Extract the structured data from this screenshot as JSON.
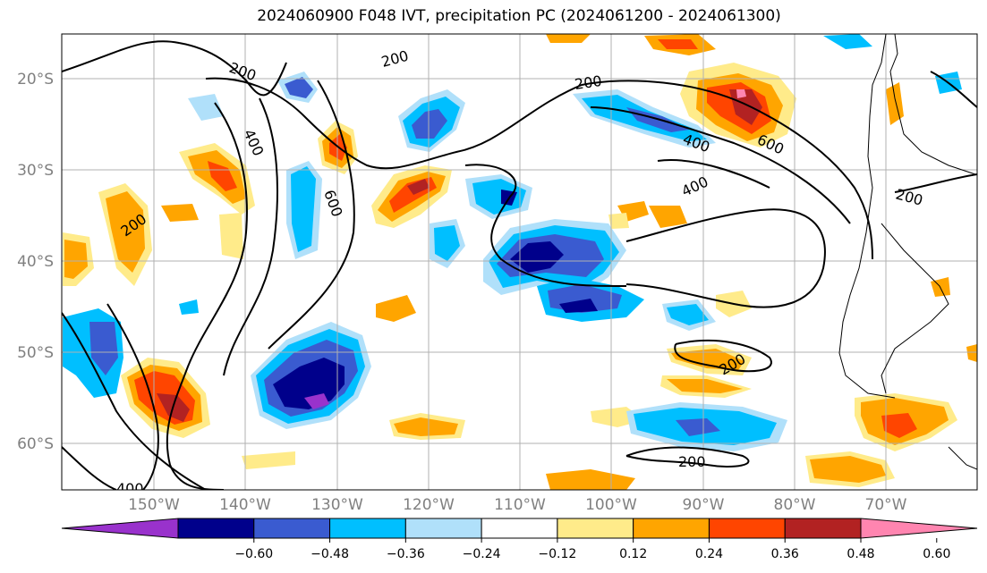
{
  "title": "2024060900 F048 IVT, precipitation PC (2024061200 - 2024061300)",
  "map": {
    "lat_labels": [
      "20°S",
      "30°S",
      "40°S",
      "50°S",
      "60°S"
    ],
    "lon_labels": [
      "150°W",
      "140°W",
      "130°W",
      "120°W",
      "110°W",
      "100°W",
      "90°W",
      "80°W",
      "70°W"
    ],
    "gridlines": true,
    "contour_labels": [
      "200",
      "200",
      "200",
      "200",
      "200",
      "200",
      "200",
      "400",
      "400",
      "400",
      "400",
      "600",
      "600"
    ]
  },
  "colorbar": {
    "ticks": [
      "−0.60",
      "−0.48",
      "−0.36",
      "−0.24",
      "−0.12",
      "0.12",
      "0.24",
      "0.36",
      "0.48",
      "0.60"
    ],
    "colors": [
      "#9932cc",
      "#00008b",
      "#3a5bd0",
      "#00bfff",
      "#b0e0fa",
      "#ffffff",
      "#ffeb8a",
      "#ffa500",
      "#ff4500",
      "#b22222",
      "#ff85b0"
    ],
    "extend": "both"
  }
}
